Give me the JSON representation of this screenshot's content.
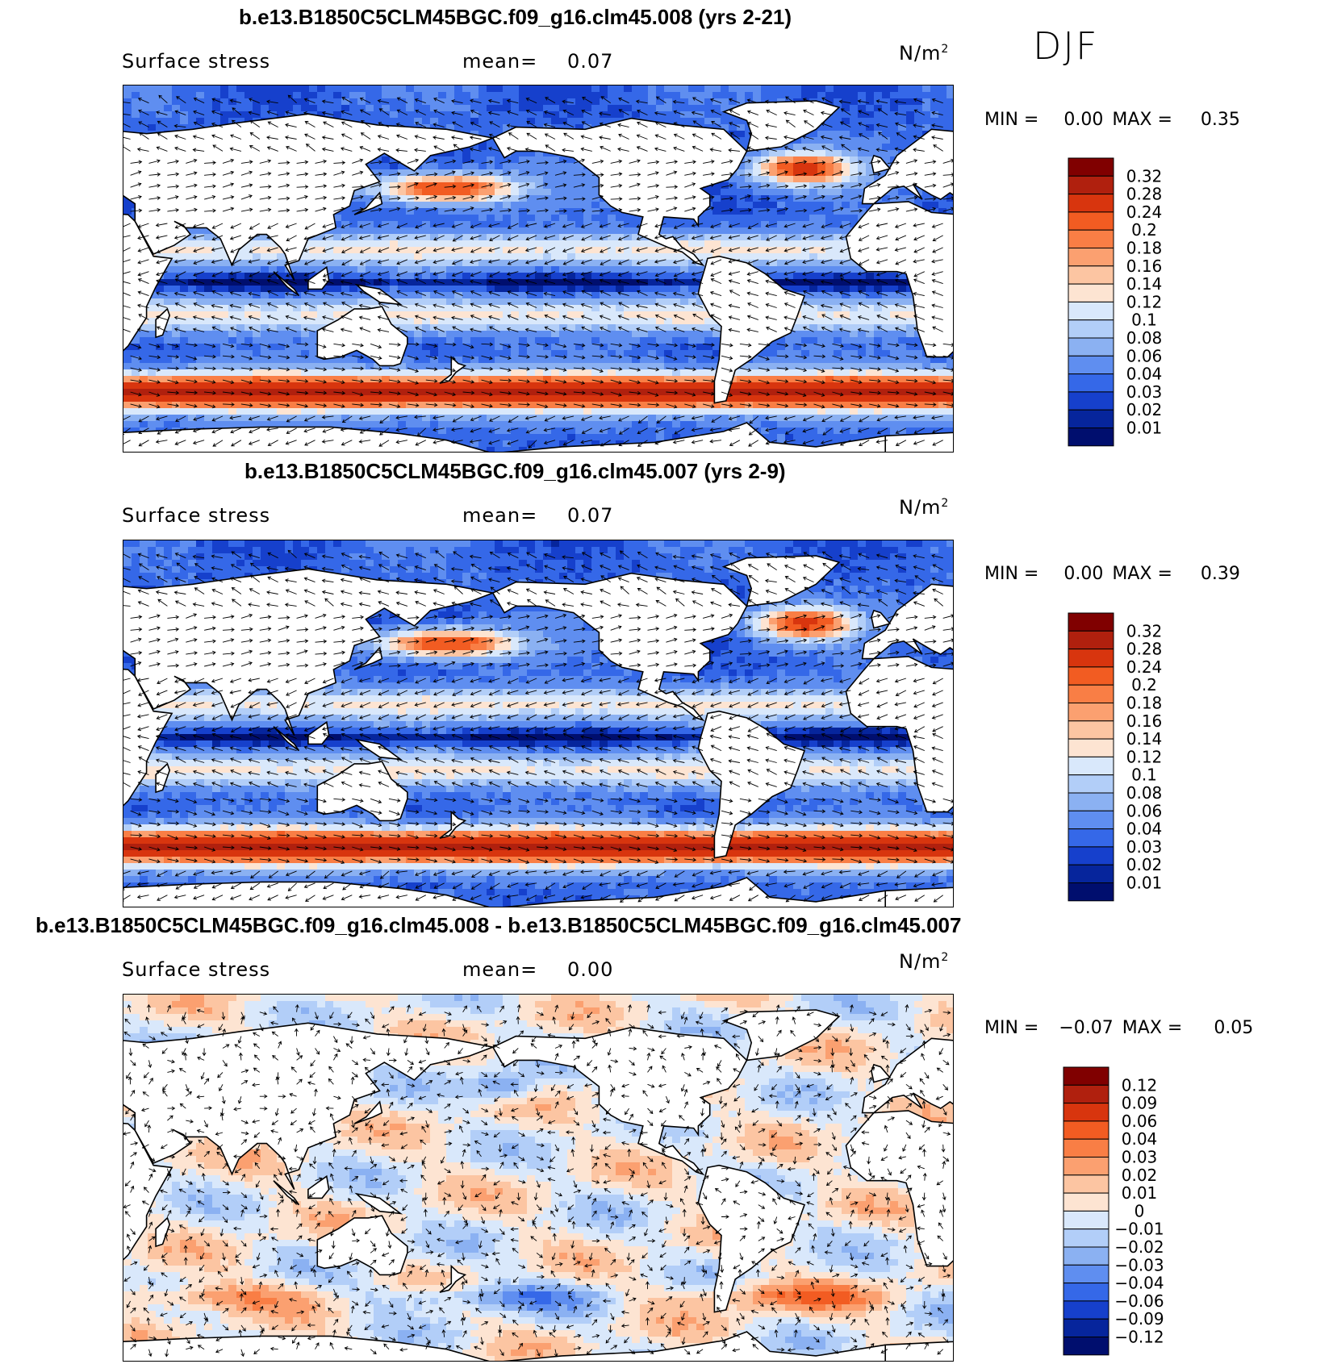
{
  "season": "DJF",
  "panels": [
    {
      "title": "b.e13.B1850C5CLM45BGC.f09_g16.clm45.008 (yrs 2-21)",
      "variable": "Surface stress",
      "mean_label": "mean=",
      "mean_value": "0.07",
      "units": "N/m",
      "units_sup": "2",
      "min_label": "MIN =",
      "min_value": "0.00",
      "max_label": "MAX =",
      "max_value": "0.35",
      "palette": "abs",
      "colorbar": {
        "labels": [
          "0.32",
          "0.28",
          "0.24",
          "0.2",
          "0.18",
          "0.16",
          "0.14",
          "0.12",
          "0.1",
          "0.08",
          "0.06",
          "0.04",
          "0.03",
          "0.02",
          "0.01"
        ],
        "colors": [
          "#800000",
          "#b0200e",
          "#d8350e",
          "#f25c22",
          "#f97e45",
          "#fba070",
          "#fcc5a2",
          "#fde4d2",
          "#d9e8fb",
          "#b2cef8",
          "#8bb1f2",
          "#5f8ef0",
          "#3568e8",
          "#1640cc",
          "#06259c",
          "#000e6e"
        ]
      },
      "min_num": 0.0,
      "max_num": 0.35,
      "seed": 11
    },
    {
      "title": "b.e13.B1850C5CLM45BGC.f09_g16.clm45.007 (yrs 2-9)",
      "variable": "Surface stress",
      "mean_label": "mean=",
      "mean_value": "0.07",
      "units": "N/m",
      "units_sup": "2",
      "min_label": "MIN =",
      "min_value": "0.00",
      "max_label": "MAX =",
      "max_value": "0.39",
      "palette": "abs",
      "colorbar": {
        "labels": [
          "0.32",
          "0.28",
          "0.24",
          "0.2",
          "0.18",
          "0.16",
          "0.14",
          "0.12",
          "0.1",
          "0.08",
          "0.06",
          "0.04",
          "0.03",
          "0.02",
          "0.01"
        ],
        "colors": [
          "#800000",
          "#b0200e",
          "#d8350e",
          "#f25c22",
          "#f97e45",
          "#fba070",
          "#fcc5a2",
          "#fde4d2",
          "#d9e8fb",
          "#b2cef8",
          "#8bb1f2",
          "#5f8ef0",
          "#3568e8",
          "#1640cc",
          "#06259c",
          "#000e6e"
        ]
      },
      "min_num": 0.0,
      "max_num": 0.39,
      "seed": 23
    },
    {
      "title": "b.e13.B1850C5CLM45BGC.f09_g16.clm45.008 - b.e13.B1850C5CLM45BGC.f09_g16.clm45.007",
      "variable": "Surface stress",
      "mean_label": "mean=",
      "mean_value": "0.00",
      "units": "N/m",
      "units_sup": "2",
      "min_label": "MIN =",
      "min_value": "−0.07",
      "max_label": "MAX =",
      "max_value": "0.05",
      "palette": "diff",
      "colorbar": {
        "labels": [
          "0.12",
          "0.09",
          "0.06",
          "0.04",
          "0.03",
          "0.02",
          "0.01",
          "0",
          "−0.01",
          "−0.02",
          "−0.03",
          "−0.04",
          "−0.06",
          "−0.09",
          "−0.12"
        ],
        "colors": [
          "#800000",
          "#b0200e",
          "#d8350e",
          "#f25c22",
          "#f97e45",
          "#fba070",
          "#fcc5a2",
          "#fde4d2",
          "#d9e8fb",
          "#b2cef8",
          "#8bb1f2",
          "#5f8ef0",
          "#3568e8",
          "#1640cc",
          "#06259c",
          "#000e6e"
        ]
      },
      "min_num": -0.07,
      "max_num": 0.05,
      "seed": 37
    }
  ]
}
